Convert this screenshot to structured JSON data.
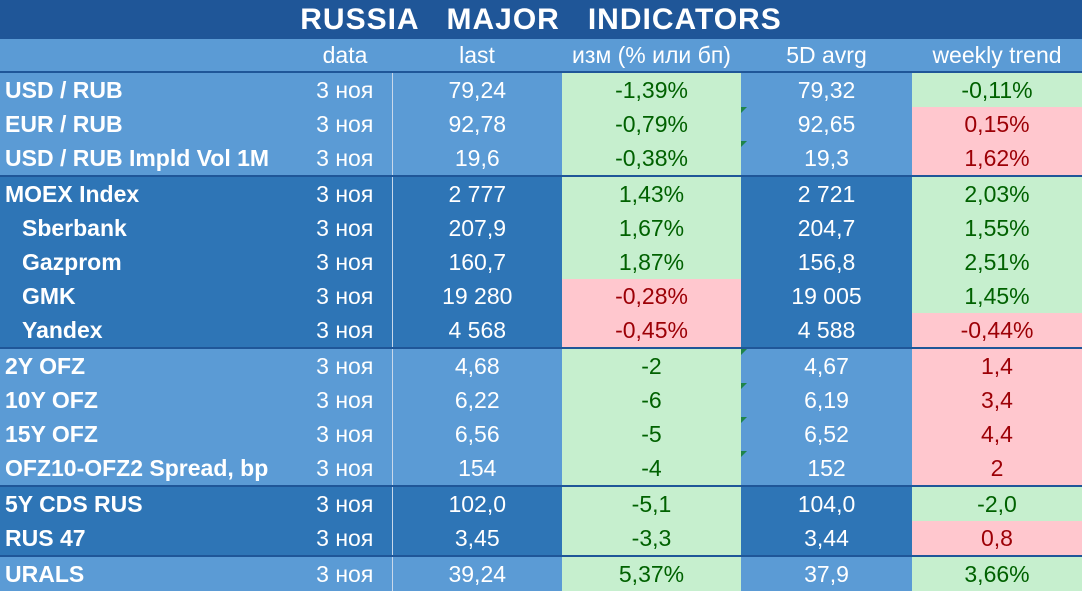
{
  "title": "RUSSIA   MAJOR   INDICATORS",
  "headers": [
    "",
    "data",
    "last",
    "изм (% или бп)",
    "5D avrg",
    "weekly trend"
  ],
  "rows": [
    {
      "name": "USD / RUB",
      "date": "3 ноя",
      "last": "79,24",
      "change": "-1,39%",
      "avg5d": "79,32",
      "weekly": "-0,11%"
    },
    {
      "name": "EUR / RUB",
      "date": "3 ноя",
      "last": "92,78",
      "change": "-0,79%",
      "avg5d": "92,65",
      "weekly": "0,15%"
    },
    {
      "name": "USD / RUB Impld Vol 1M",
      "date": "3 ноя",
      "last": "19,6",
      "change": "-0,38%",
      "avg5d": "19,3",
      "weekly": "1,62%"
    },
    {
      "name": "MOEX Index",
      "date": "3 ноя",
      "last": "2 777",
      "change": "1,43%",
      "avg5d": "2 721",
      "weekly": "2,03%"
    },
    {
      "name": "Sberbank",
      "date": "3 ноя",
      "last": "207,9",
      "change": "1,67%",
      "avg5d": "204,7",
      "weekly": "1,55%"
    },
    {
      "name": "Gazprom",
      "date": "3 ноя",
      "last": "160,7",
      "change": "1,87%",
      "avg5d": "156,8",
      "weekly": "2,51%"
    },
    {
      "name": "GMK",
      "date": "3 ноя",
      "last": "19 280",
      "change": "-0,28%",
      "avg5d": "19 005",
      "weekly": "1,45%"
    },
    {
      "name": "Yandex",
      "date": "3 ноя",
      "last": "4 568",
      "change": "-0,45%",
      "avg5d": "4 588",
      "weekly": "-0,44%"
    },
    {
      "name": "2Y OFZ",
      "date": "3 ноя",
      "last": "4,68",
      "change": "-2",
      "avg5d": "4,67",
      "weekly": "1,4"
    },
    {
      "name": "10Y OFZ",
      "date": "3 ноя",
      "last": "6,22",
      "change": "-6",
      "avg5d": "6,19",
      "weekly": "3,4"
    },
    {
      "name": "15Y OFZ",
      "date": "3 ноя",
      "last": "6,56",
      "change": "-5",
      "avg5d": "6,52",
      "weekly": "4,4"
    },
    {
      "name": "OFZ10-OFZ2 Spread, bp",
      "date": "3 ноя",
      "last": "154",
      "change": "-4",
      "avg5d": "152",
      "weekly": "2"
    },
    {
      "name": "5Y CDS RUS",
      "date": "3 ноя",
      "last": "102,0",
      "change": "-5,1",
      "avg5d": "104,0",
      "weekly": "-2,0"
    },
    {
      "name": "RUS 47",
      "date": "3 ноя",
      "last": "3,45",
      "change": "-3,3",
      "avg5d": "3,44",
      "weekly": "0,8"
    },
    {
      "name": "URALS",
      "date": "3 ноя",
      "last": "39,24",
      "change": "5,37%",
      "avg5d": "37,9",
      "weekly": "3,66%"
    }
  ],
  "colors": {
    "title_bg": "#1f5698",
    "header_bg": "#5b9bd5",
    "group_light": "#5b9bd5",
    "group_dark": "#2e75b6",
    "positive_bg": "#c6efce",
    "positive_text": "#006100",
    "negative_bg": "#ffc7ce",
    "negative_text": "#9c0006"
  }
}
